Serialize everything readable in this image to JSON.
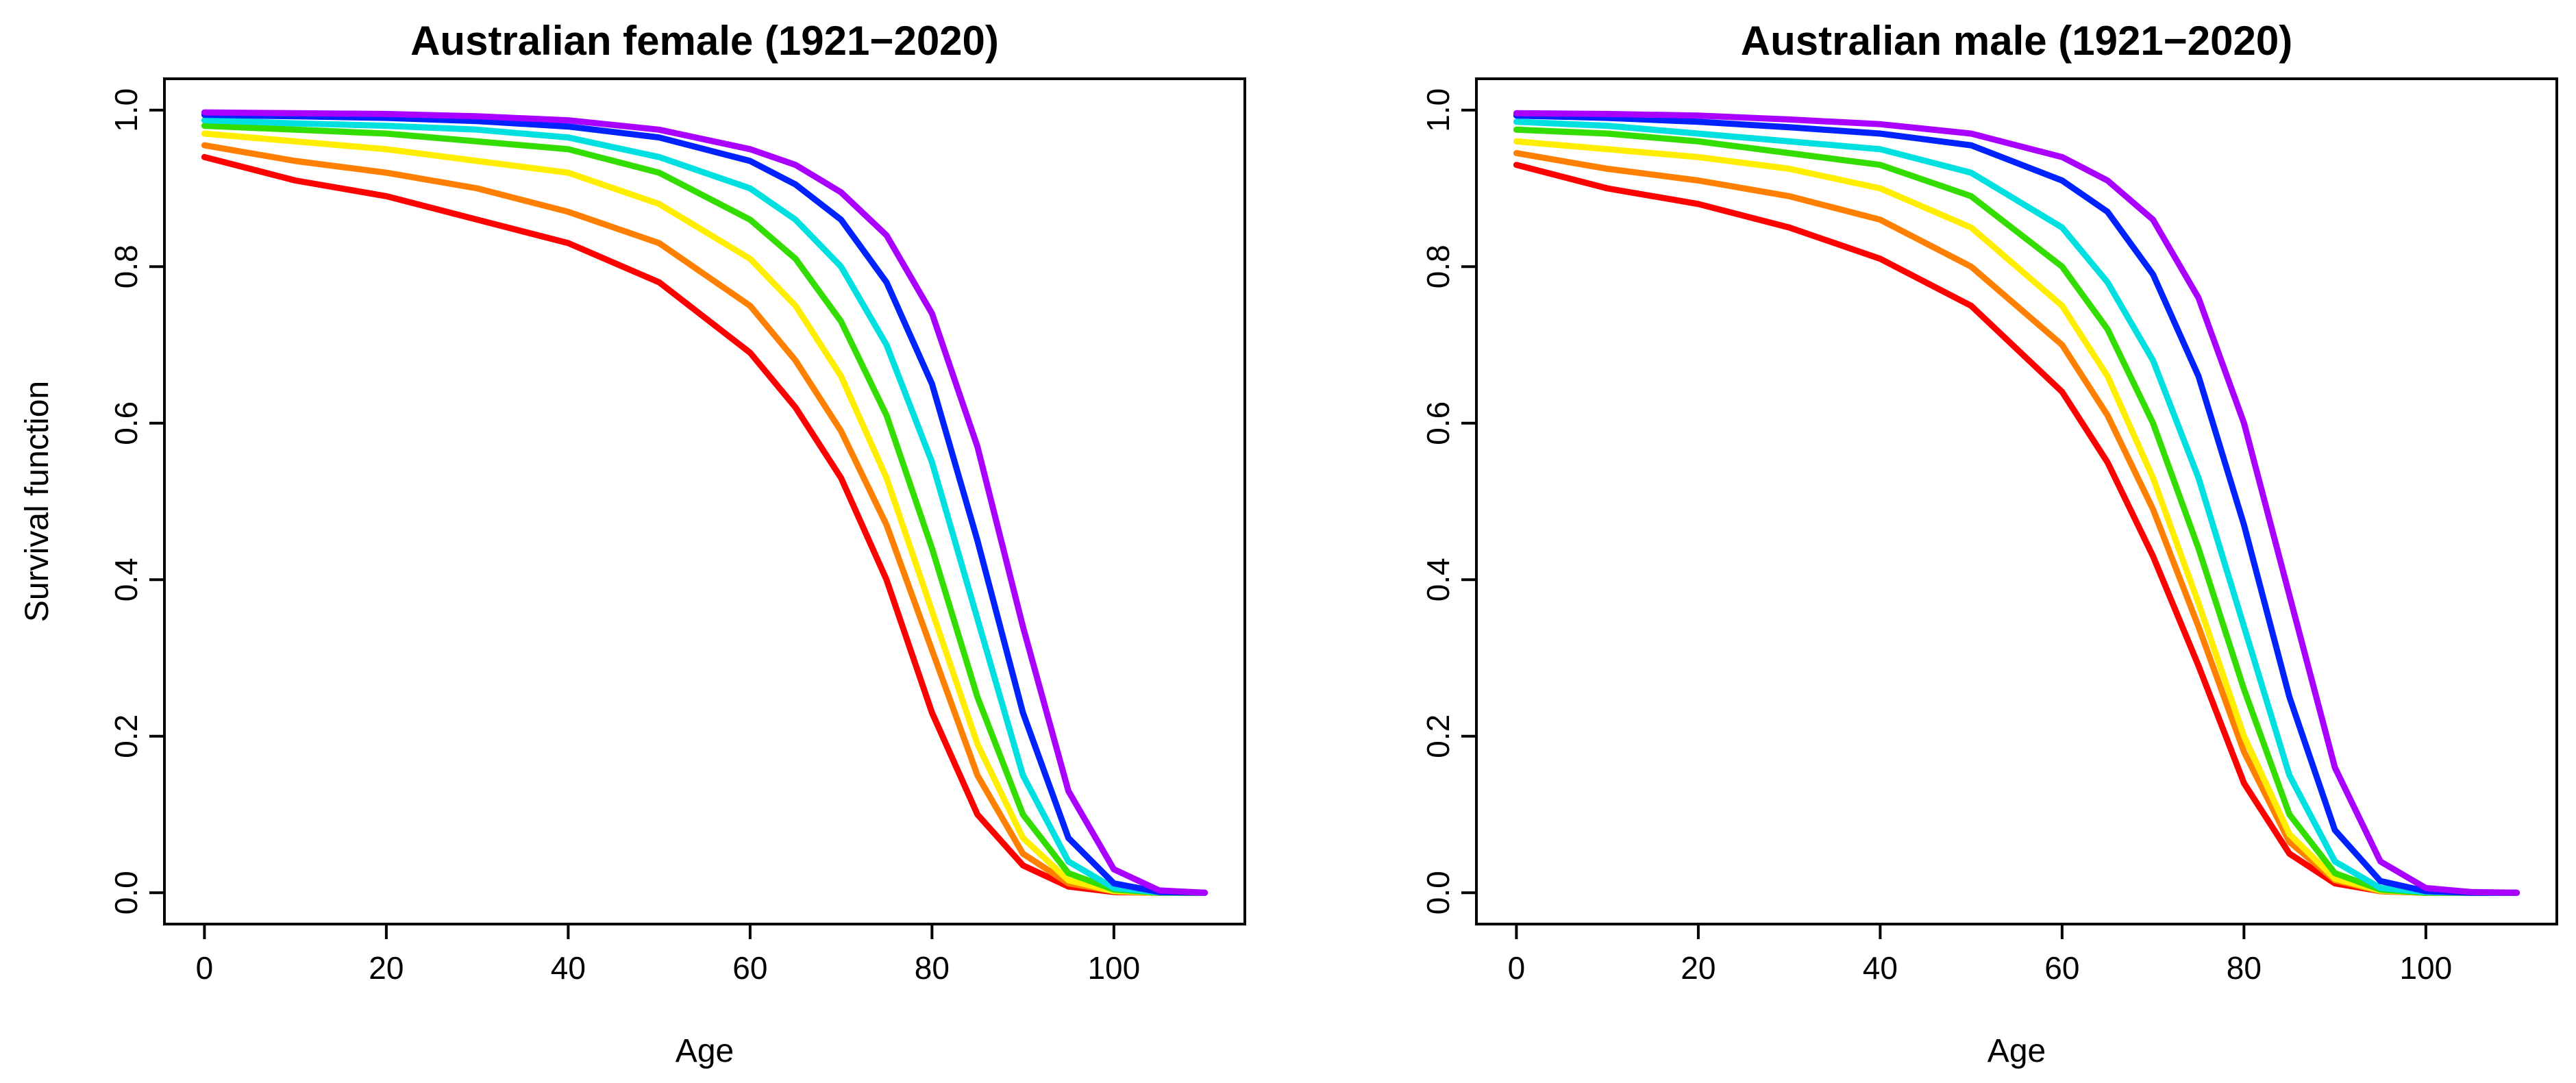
{
  "chart_data": [
    {
      "type": "line",
      "title": "Australian female (1921−2020)",
      "xlabel": "Age",
      "ylabel": "Survival function",
      "x": [
        0,
        10,
        20,
        30,
        40,
        50,
        60,
        65,
        70,
        75,
        80,
        85,
        90,
        95,
        100,
        105,
        110
      ],
      "xlim": [
        -4.4,
        114.4
      ],
      "xticks": [
        0,
        20,
        40,
        60,
        80,
        100
      ],
      "ylim": [
        -0.04,
        1.04
      ],
      "yticks": [
        {
          "value": 0,
          "label": "0.0"
        },
        {
          "value": 0.2,
          "label": "0.2"
        },
        {
          "value": 0.4,
          "label": "0.4"
        },
        {
          "value": 0.6,
          "label": "0.6"
        },
        {
          "value": 0.8,
          "label": "0.8"
        },
        {
          "value": 1,
          "label": "1.0"
        }
      ],
      "series": [
        {
          "color": "#ff0000",
          "values": [
            0.94,
            0.91,
            0.89,
            0.86,
            0.83,
            0.78,
            0.69,
            0.62,
            0.53,
            0.4,
            0.23,
            0.1,
            0.035,
            0.008,
            0.001,
            0,
            0
          ]
        },
        {
          "color": "#ff8000",
          "values": [
            0.955,
            0.935,
            0.92,
            0.9,
            0.87,
            0.83,
            0.75,
            0.68,
            0.59,
            0.47,
            0.31,
            0.15,
            0.05,
            0.012,
            0.002,
            0,
            0
          ]
        },
        {
          "color": "#ffee00",
          "values": [
            0.97,
            0.96,
            0.95,
            0.935,
            0.92,
            0.88,
            0.81,
            0.75,
            0.66,
            0.53,
            0.36,
            0.19,
            0.07,
            0.016,
            0.002,
            0,
            0
          ]
        },
        {
          "color": "#33dd00",
          "values": [
            0.98,
            0.975,
            0.97,
            0.96,
            0.95,
            0.92,
            0.86,
            0.81,
            0.73,
            0.61,
            0.44,
            0.25,
            0.1,
            0.025,
            0.004,
            0,
            0
          ]
        },
        {
          "color": "#00e0e0",
          "values": [
            0.987,
            0.983,
            0.98,
            0.975,
            0.965,
            0.94,
            0.9,
            0.86,
            0.8,
            0.7,
            0.55,
            0.35,
            0.15,
            0.04,
            0.006,
            0.0005,
            0
          ]
        },
        {
          "color": "#0022ff",
          "values": [
            0.994,
            0.992,
            0.99,
            0.986,
            0.979,
            0.965,
            0.935,
            0.905,
            0.86,
            0.78,
            0.65,
            0.45,
            0.23,
            0.07,
            0.012,
            0.001,
            0
          ]
        },
        {
          "color": "#aa00ff",
          "values": [
            0.997,
            0.996,
            0.995,
            0.992,
            0.987,
            0.975,
            0.95,
            0.93,
            0.895,
            0.84,
            0.74,
            0.57,
            0.34,
            0.13,
            0.03,
            0.003,
            0
          ]
        }
      ]
    },
    {
      "type": "line",
      "title": "Australian male (1921−2020)",
      "xlabel": "Age",
      "x": [
        0,
        10,
        20,
        30,
        40,
        50,
        60,
        65,
        70,
        75,
        80,
        85,
        90,
        95,
        100,
        105,
        110
      ],
      "xlim": [
        -4.4,
        114.4
      ],
      "xticks": [
        0,
        20,
        40,
        60,
        80,
        100
      ],
      "ylim": [
        -0.04,
        1.04
      ],
      "yticks": [
        {
          "value": 0,
          "label": "0.0"
        },
        {
          "value": 0.2,
          "label": "0.2"
        },
        {
          "value": 0.4,
          "label": "0.4"
        },
        {
          "value": 0.6,
          "label": "0.6"
        },
        {
          "value": 0.8,
          "label": "0.8"
        },
        {
          "value": 1,
          "label": "1.0"
        }
      ],
      "series": [
        {
          "color": "#ff0000",
          "values": [
            0.93,
            0.9,
            0.88,
            0.85,
            0.81,
            0.75,
            0.64,
            0.55,
            0.43,
            0.29,
            0.14,
            0.05,
            0.012,
            0.002,
            0,
            0,
            0
          ]
        },
        {
          "color": "#ff8000",
          "values": [
            0.945,
            0.925,
            0.91,
            0.89,
            0.86,
            0.8,
            0.7,
            0.61,
            0.49,
            0.34,
            0.18,
            0.065,
            0.016,
            0.002,
            0,
            0,
            0
          ]
        },
        {
          "color": "#ffee00",
          "values": [
            0.96,
            0.95,
            0.94,
            0.925,
            0.9,
            0.85,
            0.75,
            0.66,
            0.53,
            0.37,
            0.2,
            0.075,
            0.018,
            0.003,
            0,
            0,
            0
          ]
        },
        {
          "color": "#33dd00",
          "values": [
            0.975,
            0.97,
            0.96,
            0.945,
            0.93,
            0.89,
            0.8,
            0.72,
            0.6,
            0.44,
            0.26,
            0.1,
            0.025,
            0.004,
            0,
            0,
            0
          ]
        },
        {
          "color": "#00e0e0",
          "values": [
            0.985,
            0.98,
            0.97,
            0.96,
            0.95,
            0.92,
            0.85,
            0.78,
            0.68,
            0.53,
            0.34,
            0.15,
            0.04,
            0.006,
            0.001,
            0,
            0
          ]
        },
        {
          "color": "#0022ff",
          "values": [
            0.993,
            0.99,
            0.985,
            0.978,
            0.97,
            0.955,
            0.91,
            0.87,
            0.79,
            0.66,
            0.47,
            0.25,
            0.08,
            0.015,
            0.002,
            0,
            0
          ]
        },
        {
          "color": "#aa00ff",
          "values": [
            0.996,
            0.995,
            0.993,
            0.988,
            0.982,
            0.97,
            0.94,
            0.91,
            0.86,
            0.76,
            0.6,
            0.38,
            0.16,
            0.04,
            0.006,
            0.001,
            0
          ]
        }
      ]
    }
  ]
}
